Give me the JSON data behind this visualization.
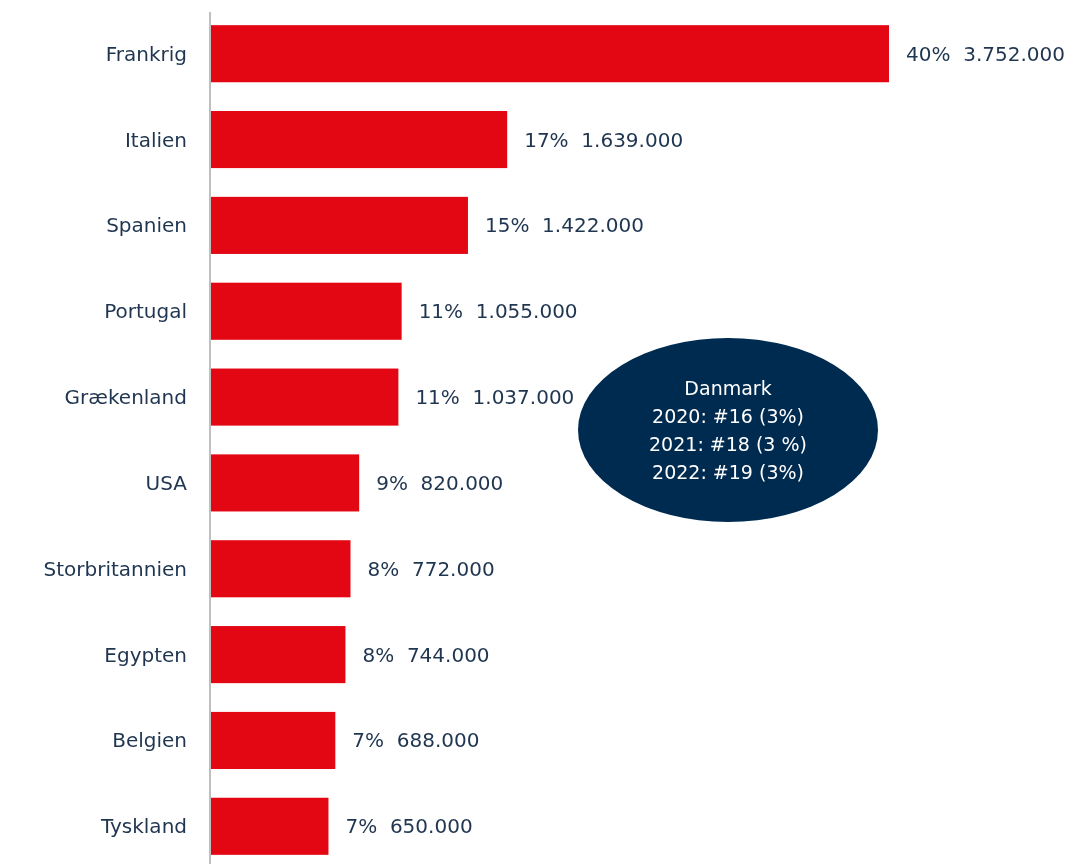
{
  "chart_data": {
    "type": "bar",
    "orientation": "horizontal",
    "categories": [
      "Frankrig",
      "Italien",
      "Spanien",
      "Portugal",
      "Grækenland",
      "USA",
      "Storbritannien",
      "Egypten",
      "Belgien",
      "Tyskland"
    ],
    "values": [
      3752000,
      1639000,
      1422000,
      1055000,
      1037000,
      820000,
      772000,
      744000,
      688000,
      650000
    ],
    "value_labels": [
      "40%  3.752.000",
      "17%  1.639.000",
      "15%  1.422.000",
      "11%  1.055.000",
      "11%  1.037.000",
      "9%  820.000",
      "8%  772.000",
      "8%  744.000",
      "7%  688.000",
      "7%  650.000"
    ],
    "color": "#e30613",
    "tick_labels": "y",
    "annotations": [
      "Danmark\n2020: #16 (3%)\n2021: #18 (3 %)\n2022: #19 (3%)"
    ]
  }
}
